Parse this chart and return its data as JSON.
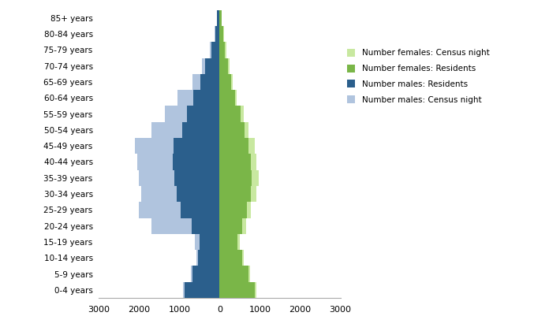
{
  "age_groups": [
    "0-4 years",
    "5-9 years",
    "10-14 years",
    "15-19 years",
    "20-24 years",
    "25-29 years",
    "30-34 years",
    "35-39 years",
    "40-44 years",
    "45-49 years",
    "50-54 years",
    "55-59 years",
    "60-64 years",
    "65-69 years",
    "70-74 years",
    "75-79 years",
    "80-84 years",
    "85+ years"
  ],
  "males_census_night": [
    900,
    720,
    580,
    620,
    1700,
    2000,
    1950,
    2000,
    2050,
    2100,
    1700,
    1350,
    1050,
    680,
    430,
    240,
    120,
    75
  ],
  "males_residents": [
    870,
    680,
    540,
    490,
    700,
    960,
    1060,
    1130,
    1170,
    1150,
    930,
    820,
    660,
    480,
    370,
    200,
    105,
    65
  ],
  "females_residents": [
    870,
    710,
    560,
    450,
    560,
    680,
    770,
    800,
    770,
    720,
    620,
    520,
    375,
    280,
    200,
    135,
    90,
    42
  ],
  "females_census_night": [
    920,
    760,
    600,
    500,
    650,
    780,
    920,
    980,
    920,
    870,
    720,
    590,
    425,
    325,
    255,
    165,
    108,
    52
  ],
  "color_males_census_night": "#b0c4de",
  "color_males_residents": "#2b5f8c",
  "color_females_residents": "#7ab648",
  "color_females_census_night": "#c8e8a0",
  "xlim": 3000,
  "bar_height": 1.0,
  "legend_labels": [
    "Number females: Census night",
    "Number females: Residents",
    "Number males: Residents",
    "Number males: Census night"
  ],
  "legend_colors": [
    "#c8e8a0",
    "#7ab648",
    "#2b5f8c",
    "#b0c4de"
  ],
  "xlabel_ticks": [
    -3000,
    -2000,
    -1000,
    0,
    1000,
    2000,
    3000
  ],
  "xlabel_labels": [
    "3000",
    "2000",
    "1000",
    "0",
    "1000",
    "2000",
    "3000"
  ],
  "figsize": [
    6.96,
    4.2
  ],
  "dpi": 100
}
